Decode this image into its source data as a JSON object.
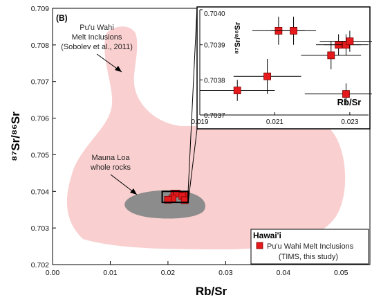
{
  "chart_data": [
    {
      "type": "scatter",
      "panel_label": "(B)",
      "xlabel": "Rb/Sr",
      "ylabel": "⁸⁷Sr/⁸⁶Sr",
      "xlim": [
        0.0,
        0.055
      ],
      "ylim": [
        0.702,
        0.709
      ],
      "xticks": [
        "0.00",
        "0.01",
        "0.02",
        "0.03",
        "0.04",
        "0.05"
      ],
      "yticks": [
        "0.702",
        "0.703",
        "0.704",
        "0.705",
        "0.706",
        "0.707",
        "0.708",
        "0.709"
      ],
      "regions": [
        {
          "label": "Pu'u Wahi Melt Inclusions (Sobolev et al., 2011)",
          "color": "#f9cfcf"
        },
        {
          "label": "Mauna Loa whole rocks",
          "color": "#8c8c8c"
        }
      ],
      "annotations": {
        "puu_wahi_line1": "Pu'u Wahi",
        "puu_wahi_line2": "Melt Inclusions",
        "puu_wahi_line3": "(Sobolev et al., 2011)",
        "mauna_loa_line1": "Mauna Loa",
        "mauna_loa_line2": "whole rocks"
      },
      "legend": {
        "title": "Hawai'i",
        "entry_line1": "Pu'u Wahi Melt Inclusions",
        "entry_line2": "(TIMS, this study)",
        "placement": "bottom-right"
      },
      "series": [
        {
          "name": "Pu'u Wahi Melt Inclusions (TIMS, this study)",
          "color": "#e41a1c",
          "points": [
            {
              "x": 0.0211,
              "y": 0.70394,
              "xerr": 0.0007,
              "yerr": 4e-05
            },
            {
              "x": 0.0215,
              "y": 0.70394,
              "xerr": 0.0006,
              "yerr": 4e-05
            },
            {
              "x": 0.0227,
              "y": 0.7039,
              "xerr": 0.0006,
              "yerr": 3e-05
            },
            {
              "x": 0.0229,
              "y": 0.7039,
              "xerr": 0.0006,
              "yerr": 3e-05
            },
            {
              "x": 0.023,
              "y": 0.70391,
              "xerr": 0.0008,
              "yerr": 3e-05
            },
            {
              "x": 0.0225,
              "y": 0.70387,
              "xerr": 0.0008,
              "yerr": 4e-05
            },
            {
              "x": 0.0208,
              "y": 0.70381,
              "xerr": 0.0009,
              "yerr": 5e-05
            },
            {
              "x": 0.02,
              "y": 0.70377,
              "xerr": 0.001,
              "yerr": 3e-05
            },
            {
              "x": 0.0229,
              "y": 0.70376,
              "xerr": 0.0011,
              "yerr": 3e-05
            }
          ]
        }
      ]
    },
    {
      "type": "scatter",
      "role": "inset",
      "xlabel": "Rb/Sr",
      "ylabel": "⁸⁷Sr/⁸⁶Sr",
      "xlim": [
        0.019,
        0.0235
      ],
      "ylim": [
        0.7037,
        0.704
      ],
      "xticks": [
        "0.019",
        "0.021",
        "0.023"
      ],
      "yticks": [
        "0.7037",
        "0.7038",
        "0.7039",
        "0.7040"
      ],
      "series_ref": "Pu'u Wahi Melt Inclusions (TIMS, this study)"
    }
  ]
}
